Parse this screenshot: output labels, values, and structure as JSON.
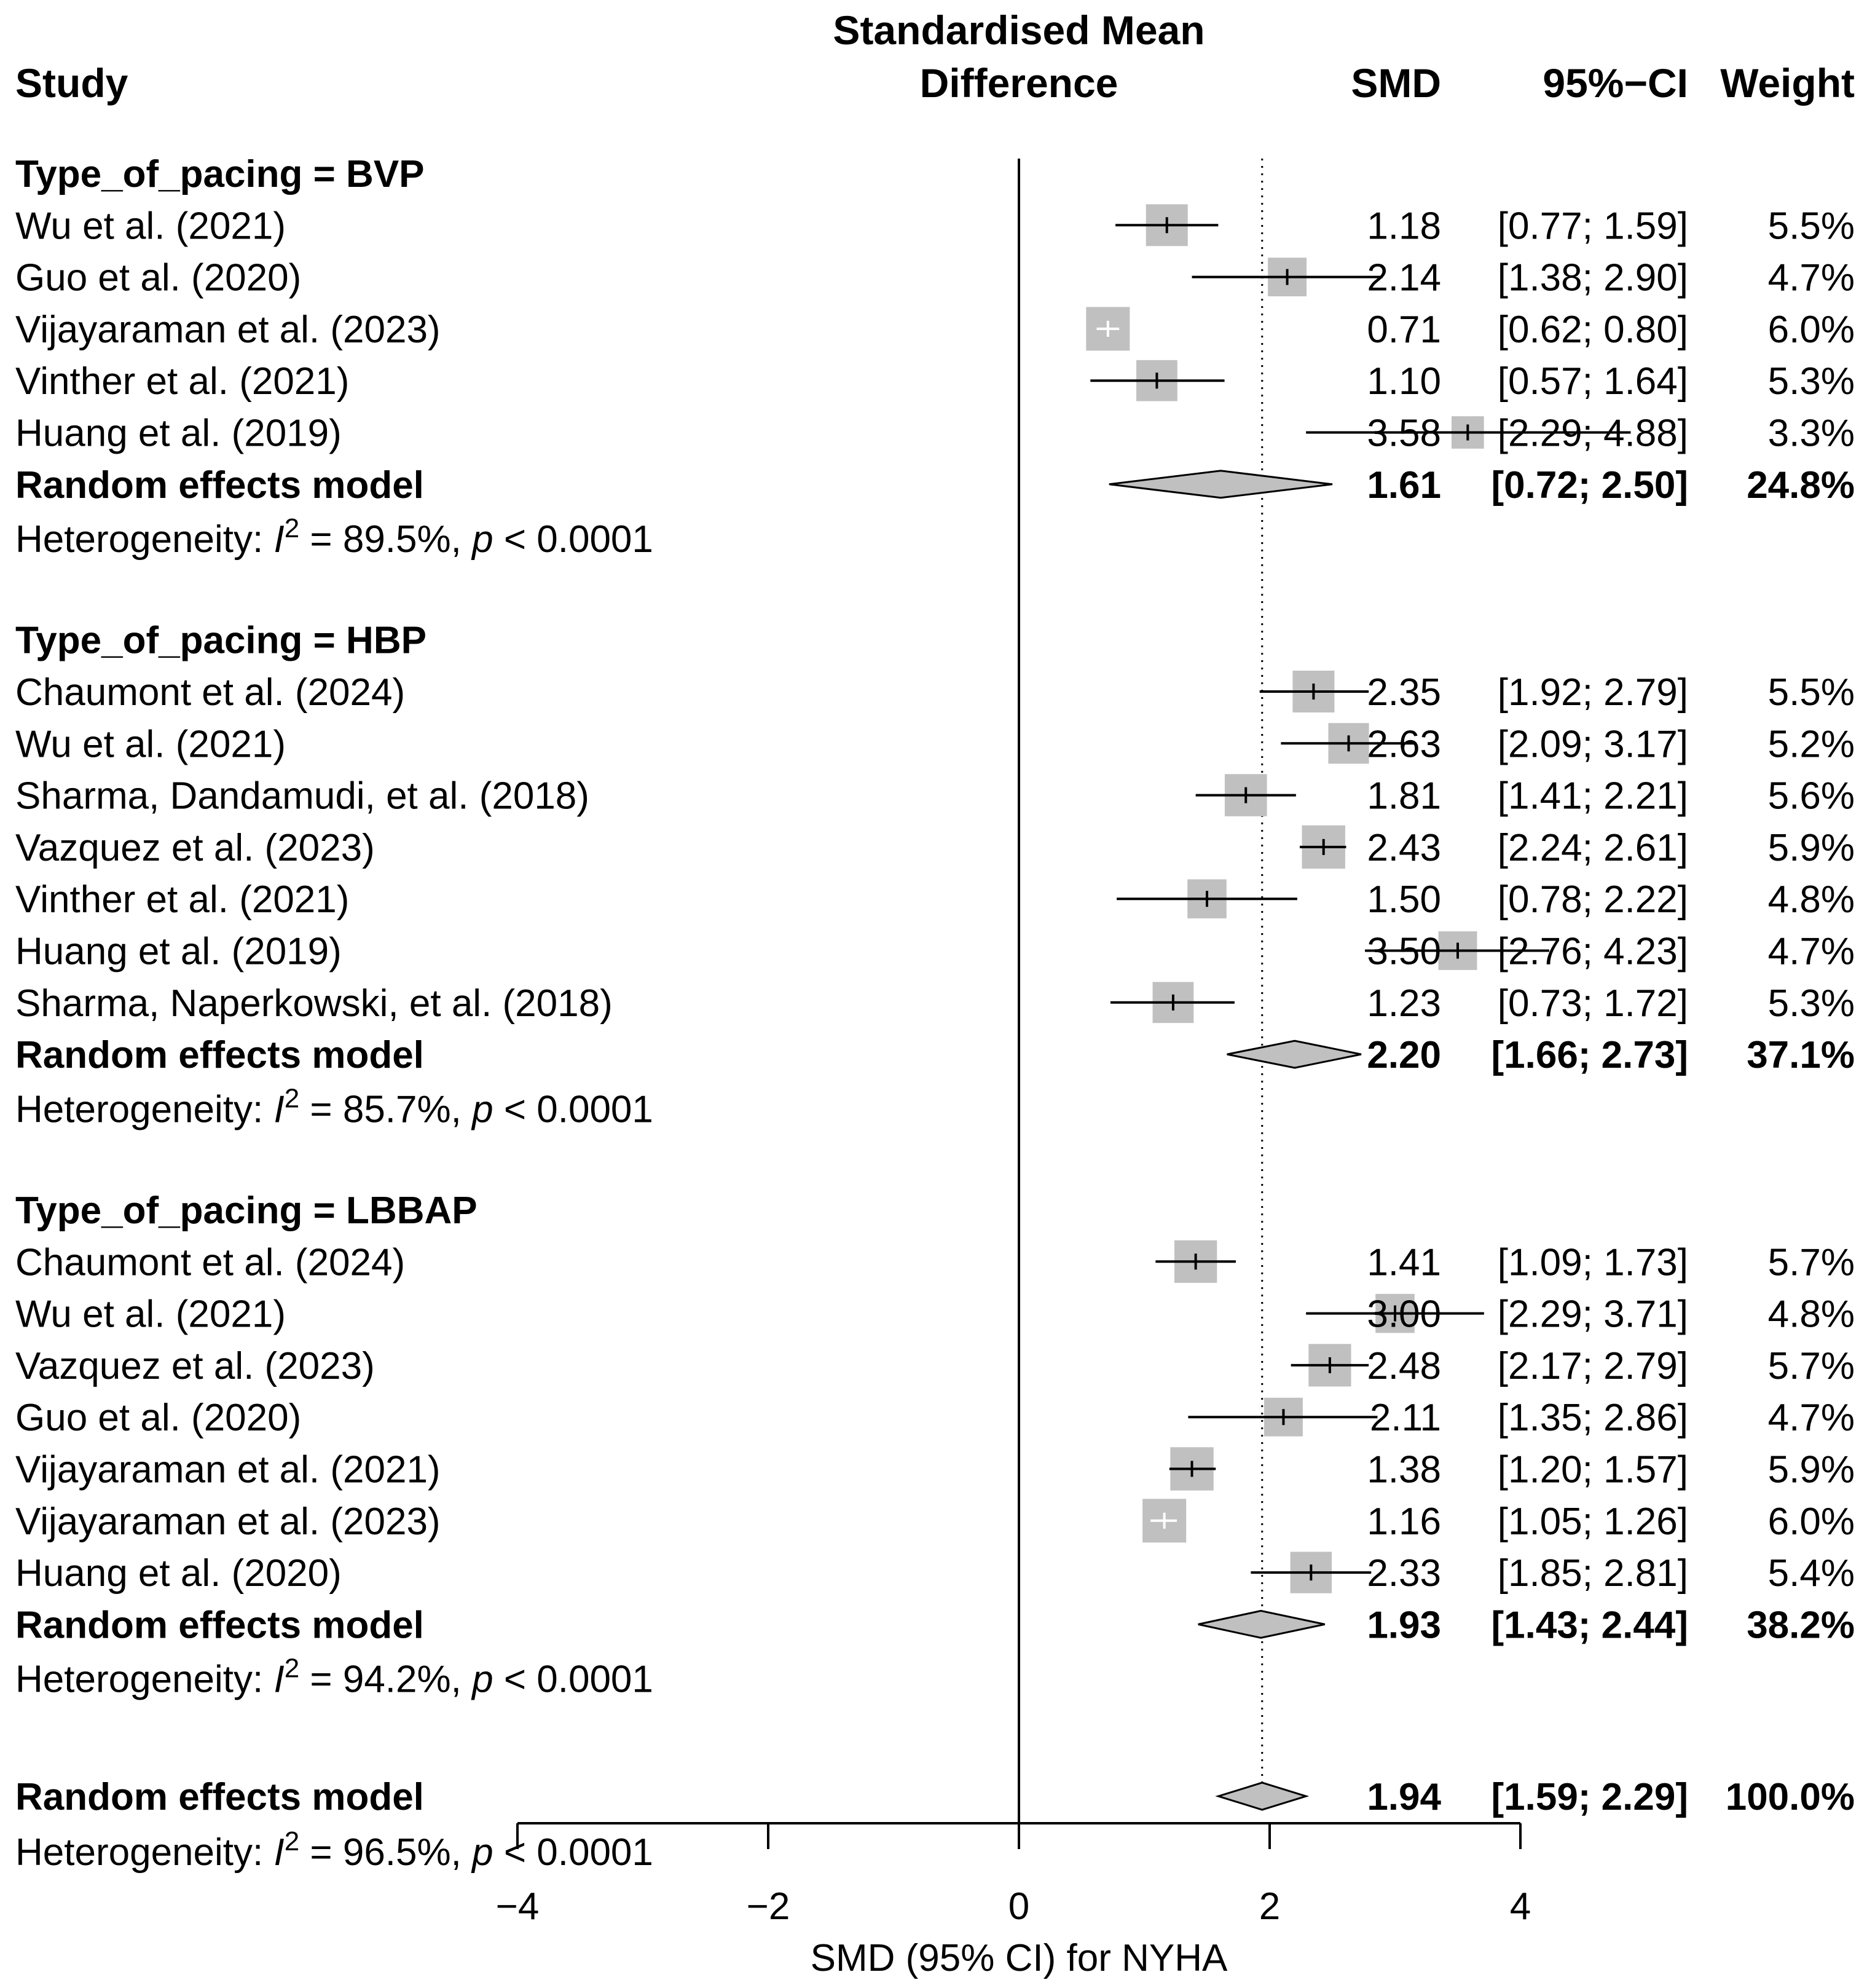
{
  "chart_data": {
    "type": "forest",
    "header": {
      "study": "Study",
      "effect_line1": "Standardised Mean",
      "effect_line2": "Difference",
      "smd": "SMD",
      "ci": "95%−CI",
      "weight": "Weight"
    },
    "xlim": [
      -4,
      4
    ],
    "x_ticks": [
      -4,
      -2,
      0,
      2,
      4
    ],
    "x_tick_labels": [
      "−4",
      "−2",
      "0",
      "2",
      "4"
    ],
    "xlabel": "SMD (95% CI) for NYHA",
    "reference_line": 0,
    "overall_line": 1.94,
    "groups": [
      {
        "label": "Type_of_pacing = BVP",
        "studies": [
          {
            "name": "Wu et al. (2021)",
            "smd": 1.18,
            "lower": 0.77,
            "upper": 1.59,
            "smd_text": "1.18",
            "ci_text": "[0.77; 1.59]",
            "weight_text": "5.5%"
          },
          {
            "name": "Guo et al. (2020)",
            "smd": 2.14,
            "lower": 1.38,
            "upper": 2.9,
            "smd_text": "2.14",
            "ci_text": "[1.38; 2.90]",
            "weight_text": "4.7%"
          },
          {
            "name": "Vijayaraman et al. (2023)",
            "smd": 0.71,
            "lower": 0.62,
            "upper": 0.8,
            "smd_text": "0.71",
            "ci_text": "[0.62; 0.80]",
            "weight_text": "6.0%"
          },
          {
            "name": "Vinther et al. (2021)",
            "smd": 1.1,
            "lower": 0.57,
            "upper": 1.64,
            "smd_text": "1.10",
            "ci_text": "[0.57; 1.64]",
            "weight_text": "5.3%"
          },
          {
            "name": "Huang et al. (2019)",
            "smd": 3.58,
            "lower": 2.29,
            "upper": 4.88,
            "smd_text": "3.58",
            "ci_text": "[2.29; 4.88]",
            "weight_text": "3.3%"
          }
        ],
        "model": {
          "name": "Random effects model",
          "smd": 1.61,
          "lower": 0.72,
          "upper": 2.5,
          "smd_text": "1.61",
          "ci_text": "[0.72; 2.50]",
          "weight_text": "24.8%"
        },
        "heterogeneity": {
          "prefix": "Heterogeneity: ",
          "i": "I",
          "sup": "2",
          "middle": " = 89.5%, ",
          "p": "p",
          "suffix": " < 0.0001"
        }
      },
      {
        "label": "Type_of_pacing = HBP",
        "studies": [
          {
            "name": "Chaumont et al. (2024)",
            "smd": 2.35,
            "lower": 1.92,
            "upper": 2.79,
            "smd_text": "2.35",
            "ci_text": "[1.92; 2.79]",
            "weight_text": "5.5%"
          },
          {
            "name": "Wu et al. (2021)",
            "smd": 2.63,
            "lower": 2.09,
            "upper": 3.17,
            "smd_text": "2.63",
            "ci_text": "[2.09; 3.17]",
            "weight_text": "5.2%"
          },
          {
            "name": "Sharma, Dandamudi, et al. (2018)",
            "smd": 1.81,
            "lower": 1.41,
            "upper": 2.21,
            "smd_text": "1.81",
            "ci_text": "[1.41; 2.21]",
            "weight_text": "5.6%"
          },
          {
            "name": "Vazquez et al. (2023)",
            "smd": 2.43,
            "lower": 2.24,
            "upper": 2.61,
            "smd_text": "2.43",
            "ci_text": "[2.24; 2.61]",
            "weight_text": "5.9%"
          },
          {
            "name": "Vinther et al. (2021)",
            "smd": 1.5,
            "lower": 0.78,
            "upper": 2.22,
            "smd_text": "1.50",
            "ci_text": "[0.78; 2.22]",
            "weight_text": "4.8%"
          },
          {
            "name": "Huang et al. (2019)",
            "smd": 3.5,
            "lower": 2.76,
            "upper": 4.23,
            "smd_text": "3.50",
            "ci_text": "[2.76; 4.23]",
            "weight_text": "4.7%"
          },
          {
            "name": "Sharma, Naperkowski, et al. (2018)",
            "smd": 1.23,
            "lower": 0.73,
            "upper": 1.72,
            "smd_text": "1.23",
            "ci_text": "[0.73; 1.72]",
            "weight_text": "5.3%"
          }
        ],
        "model": {
          "name": "Random effects model",
          "smd": 2.2,
          "lower": 1.66,
          "upper": 2.73,
          "smd_text": "2.20",
          "ci_text": "[1.66; 2.73]",
          "weight_text": "37.1%"
        },
        "heterogeneity": {
          "prefix": "Heterogeneity: ",
          "i": "I",
          "sup": "2",
          "middle": " = 85.7%, ",
          "p": "p",
          "suffix": " < 0.0001"
        }
      },
      {
        "label": "Type_of_pacing = LBBAP",
        "studies": [
          {
            "name": "Chaumont et al. (2024)",
            "smd": 1.41,
            "lower": 1.09,
            "upper": 1.73,
            "smd_text": "1.41",
            "ci_text": "[1.09; 1.73]",
            "weight_text": "5.7%"
          },
          {
            "name": "Wu et al. (2021)",
            "smd": 3.0,
            "lower": 2.29,
            "upper": 3.71,
            "smd_text": "3.00",
            "ci_text": "[2.29; 3.71]",
            "weight_text": "4.8%"
          },
          {
            "name": "Vazquez et al. (2023)",
            "smd": 2.48,
            "lower": 2.17,
            "upper": 2.79,
            "smd_text": "2.48",
            "ci_text": "[2.17; 2.79]",
            "weight_text": "5.7%"
          },
          {
            "name": "Guo et al. (2020)",
            "smd": 2.11,
            "lower": 1.35,
            "upper": 2.86,
            "smd_text": "2.11",
            "ci_text": "[1.35; 2.86]",
            "weight_text": "4.7%"
          },
          {
            "name": "Vijayaraman et al. (2021)",
            "smd": 1.38,
            "lower": 1.2,
            "upper": 1.57,
            "smd_text": "1.38",
            "ci_text": "[1.20; 1.57]",
            "weight_text": "5.9%"
          },
          {
            "name": "Vijayaraman et al. (2023)",
            "smd": 1.16,
            "lower": 1.05,
            "upper": 1.26,
            "smd_text": "1.16",
            "ci_text": "[1.05; 1.26]",
            "weight_text": "6.0%"
          },
          {
            "name": "Huang et al. (2020)",
            "smd": 2.33,
            "lower": 1.85,
            "upper": 2.81,
            "smd_text": "2.33",
            "ci_text": "[1.85; 2.81]",
            "weight_text": "5.4%"
          }
        ],
        "model": {
          "name": "Random effects model",
          "smd": 1.93,
          "lower": 1.43,
          "upper": 2.44,
          "smd_text": "1.93",
          "ci_text": "[1.43; 2.44]",
          "weight_text": "38.2%"
        },
        "heterogeneity": {
          "prefix": "Heterogeneity: ",
          "i": "I",
          "sup": "2",
          "middle": " = 94.2%, ",
          "p": "p",
          "suffix": " < 0.0001"
        }
      }
    ],
    "overall": {
      "model": {
        "name": "Random effects model",
        "smd": 1.94,
        "lower": 1.59,
        "upper": 2.29,
        "smd_text": "1.94",
        "ci_text": "[1.59; 2.29]",
        "weight_text": "100.0%"
      },
      "heterogeneity": {
        "prefix": "Heterogeneity: ",
        "i": "I",
        "sup": "2",
        "middle": " = 96.5%, ",
        "p": "p",
        "suffix": " < 0.0001"
      }
    },
    "colors": {
      "square_fill": "#c0c0c0",
      "diamond_fill": "#c0c0c0",
      "line": "#000000",
      "inner_tick_light": "#ffffff"
    }
  }
}
